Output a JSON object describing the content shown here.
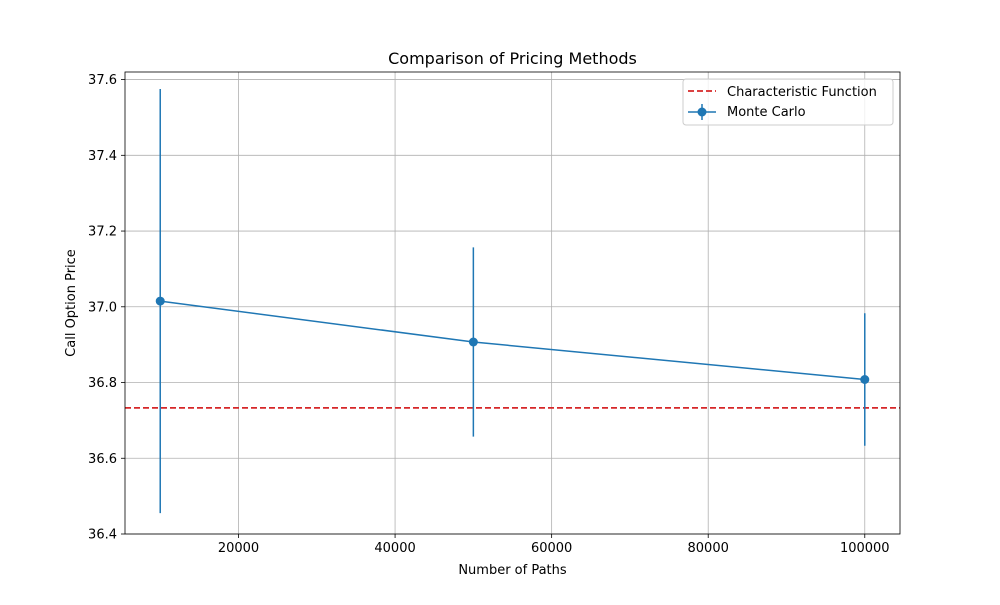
{
  "chart_data": {
    "type": "line",
    "title": "Comparison of Pricing Methods",
    "xlabel": "Number of Paths",
    "ylabel": "Call Option Price",
    "xlim": [
      5500,
      104500
    ],
    "ylim": [
      36.4,
      37.62
    ],
    "x_ticks": [
      20000,
      40000,
      60000,
      80000,
      100000
    ],
    "y_ticks": [
      36.4,
      36.6,
      36.8,
      37.0,
      37.2,
      37.4,
      37.6
    ],
    "x_tick_labels": [
      "20000",
      "40000",
      "60000",
      "80000",
      "100000"
    ],
    "y_tick_labels": [
      "36.4",
      "36.6",
      "36.8",
      "37.0",
      "37.2",
      "37.4",
      "37.6"
    ],
    "grid": true,
    "legend_position": "top-right",
    "series": [
      {
        "name": "Monte Carlo",
        "style": "line-with-errorbars",
        "color": "#1f77b4",
        "x": [
          10000,
          50000,
          100000
        ],
        "y": [
          37.015,
          36.907,
          36.808
        ],
        "error": [
          0.56,
          0.25,
          0.175
        ]
      }
    ],
    "reference_lines": [
      {
        "name": "Characteristic Function",
        "orientation": "horizontal",
        "style": "dashed",
        "color": "#d62728",
        "y": 36.733
      }
    ]
  }
}
